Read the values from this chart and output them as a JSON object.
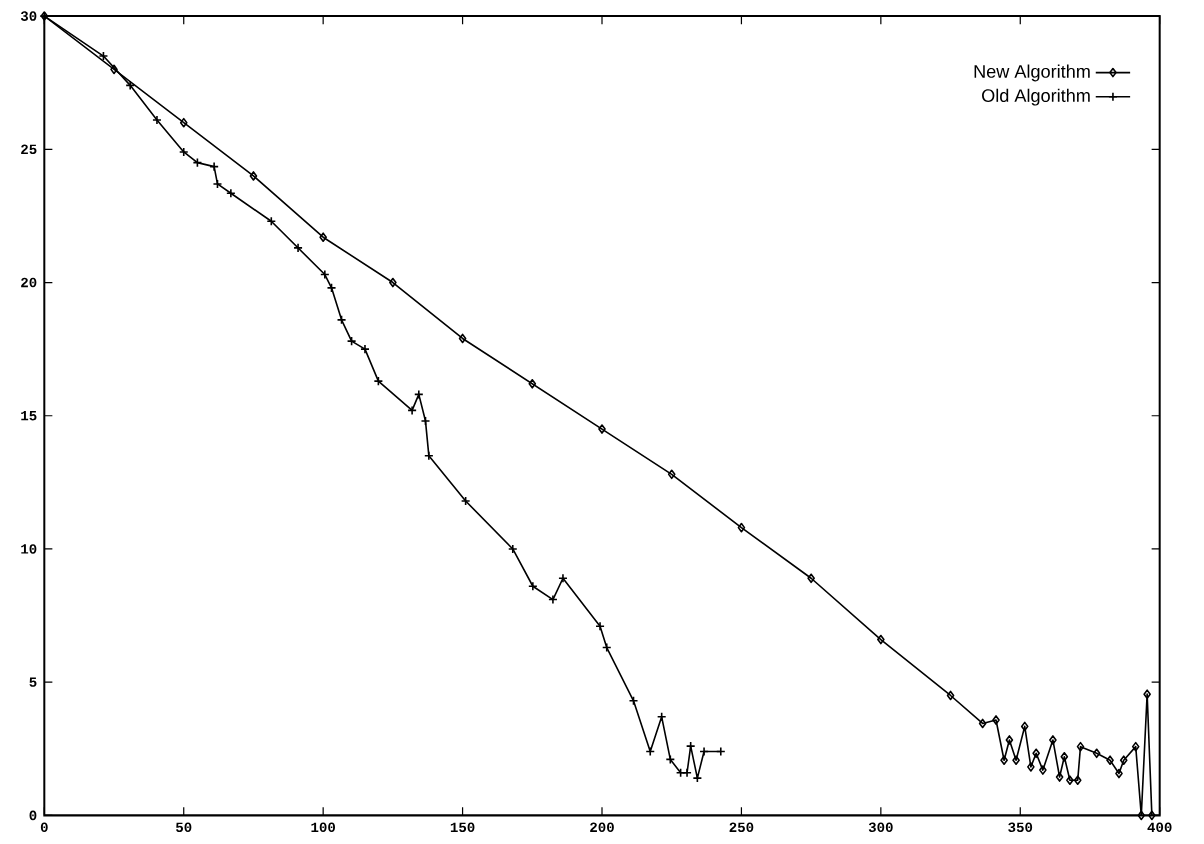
{
  "chart_data": {
    "type": "line",
    "xlim": [
      0,
      400
    ],
    "ylim": [
      0,
      30
    ],
    "xticks": [
      0,
      50,
      100,
      150,
      200,
      250,
      300,
      350,
      400
    ],
    "yticks": [
      0,
      5,
      10,
      15,
      20,
      25,
      30
    ],
    "grid": false,
    "legend": "top right",
    "line_style": "solid",
    "series": [
      {
        "name": "New Algorithm",
        "color": "#000000",
        "marker": "diamond",
        "x": [
          0,
          25,
          50,
          75,
          100,
          125,
          150,
          175,
          200,
          225,
          250,
          275,
          300,
          325,
          336.5,
          341.3,
          344.2,
          346.1,
          348.5,
          351.6,
          353.8,
          355.7,
          358.1,
          361.7,
          364.1,
          365.8,
          367.8,
          370.6,
          371.6,
          377.4,
          382.2,
          385.4,
          387.1,
          391.4,
          393.4,
          395.5,
          397.2
        ],
        "values": [
          30,
          28.0,
          26.0,
          24.0,
          21.7,
          20.0,
          17.9,
          16.2,
          14.5,
          12.8,
          10.8,
          8.9,
          6.6,
          4.5,
          3.45,
          3.58,
          2.07,
          2.83,
          2.07,
          3.34,
          1.82,
          2.33,
          1.7,
          2.83,
          1.44,
          2.2,
          1.32,
          1.32,
          2.58,
          2.33,
          2.07,
          1.57,
          2.07,
          2.58,
          0,
          4.55,
          0
        ]
      },
      {
        "name": "Old Algorithm",
        "color": "#000000",
        "marker": "cross",
        "x": [
          0,
          21.2,
          30.8,
          40.4,
          50,
          54.9,
          60.9,
          62.1,
          66.9,
          81.4,
          91,
          100.6,
          103,
          106.6,
          110.2,
          115,
          119.8,
          131.9,
          134.3,
          136.7,
          137.9,
          151.1,
          168,
          175.2,
          182.4,
          186,
          199.3,
          201.7,
          211.3,
          217.3,
          221.4,
          224.5,
          228.2,
          230.5,
          231.8,
          234.2,
          236.6,
          242.6
        ],
        "values": [
          30,
          28.5,
          27.4,
          26.1,
          24.9,
          24.5,
          24.35,
          23.7,
          23.35,
          22.3,
          21.3,
          20.3,
          19.8,
          18.6,
          17.8,
          17.5,
          16.3,
          15.2,
          15.8,
          14.8,
          13.5,
          11.8,
          10.0,
          8.6,
          8.1,
          8.9,
          7.1,
          6.3,
          4.3,
          2.4,
          3.7,
          2.1,
          1.6,
          1.6,
          2.6,
          1.4,
          2.4,
          2.4
        ]
      }
    ]
  }
}
